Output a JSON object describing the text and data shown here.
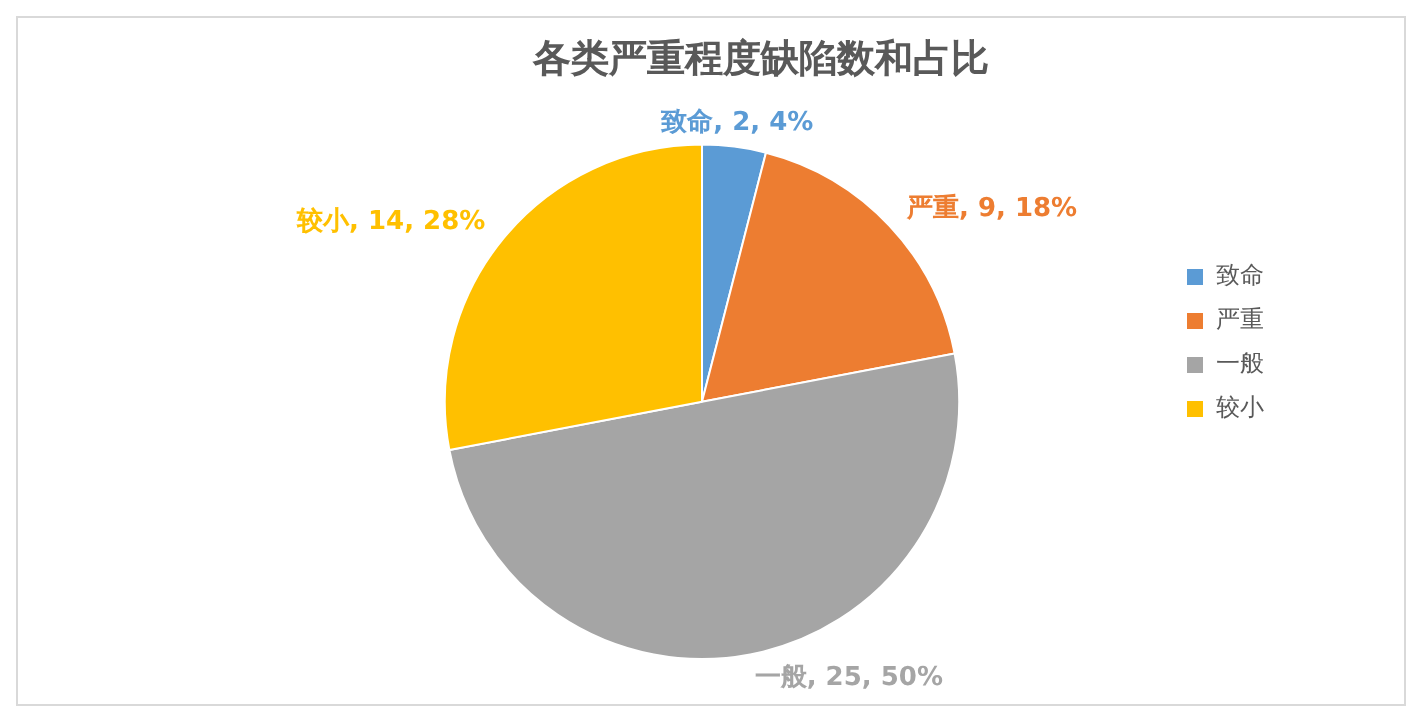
{
  "chart_data": {
    "type": "pie",
    "title": "各类严重程度缺陷数和占比",
    "categories": [
      "致命",
      "严重",
      "一般",
      "较小"
    ],
    "values": [
      2,
      9,
      25,
      14
    ],
    "colors": [
      "#5b9bd5",
      "#ed7d31",
      "#a5a5a5",
      "#ffc000"
    ],
    "value_labels": [
      "致命, 2, 4%",
      "严重, 9, 18%",
      "一般, 25, 50%",
      "较小, 14, 28%"
    ],
    "legend": "right"
  }
}
